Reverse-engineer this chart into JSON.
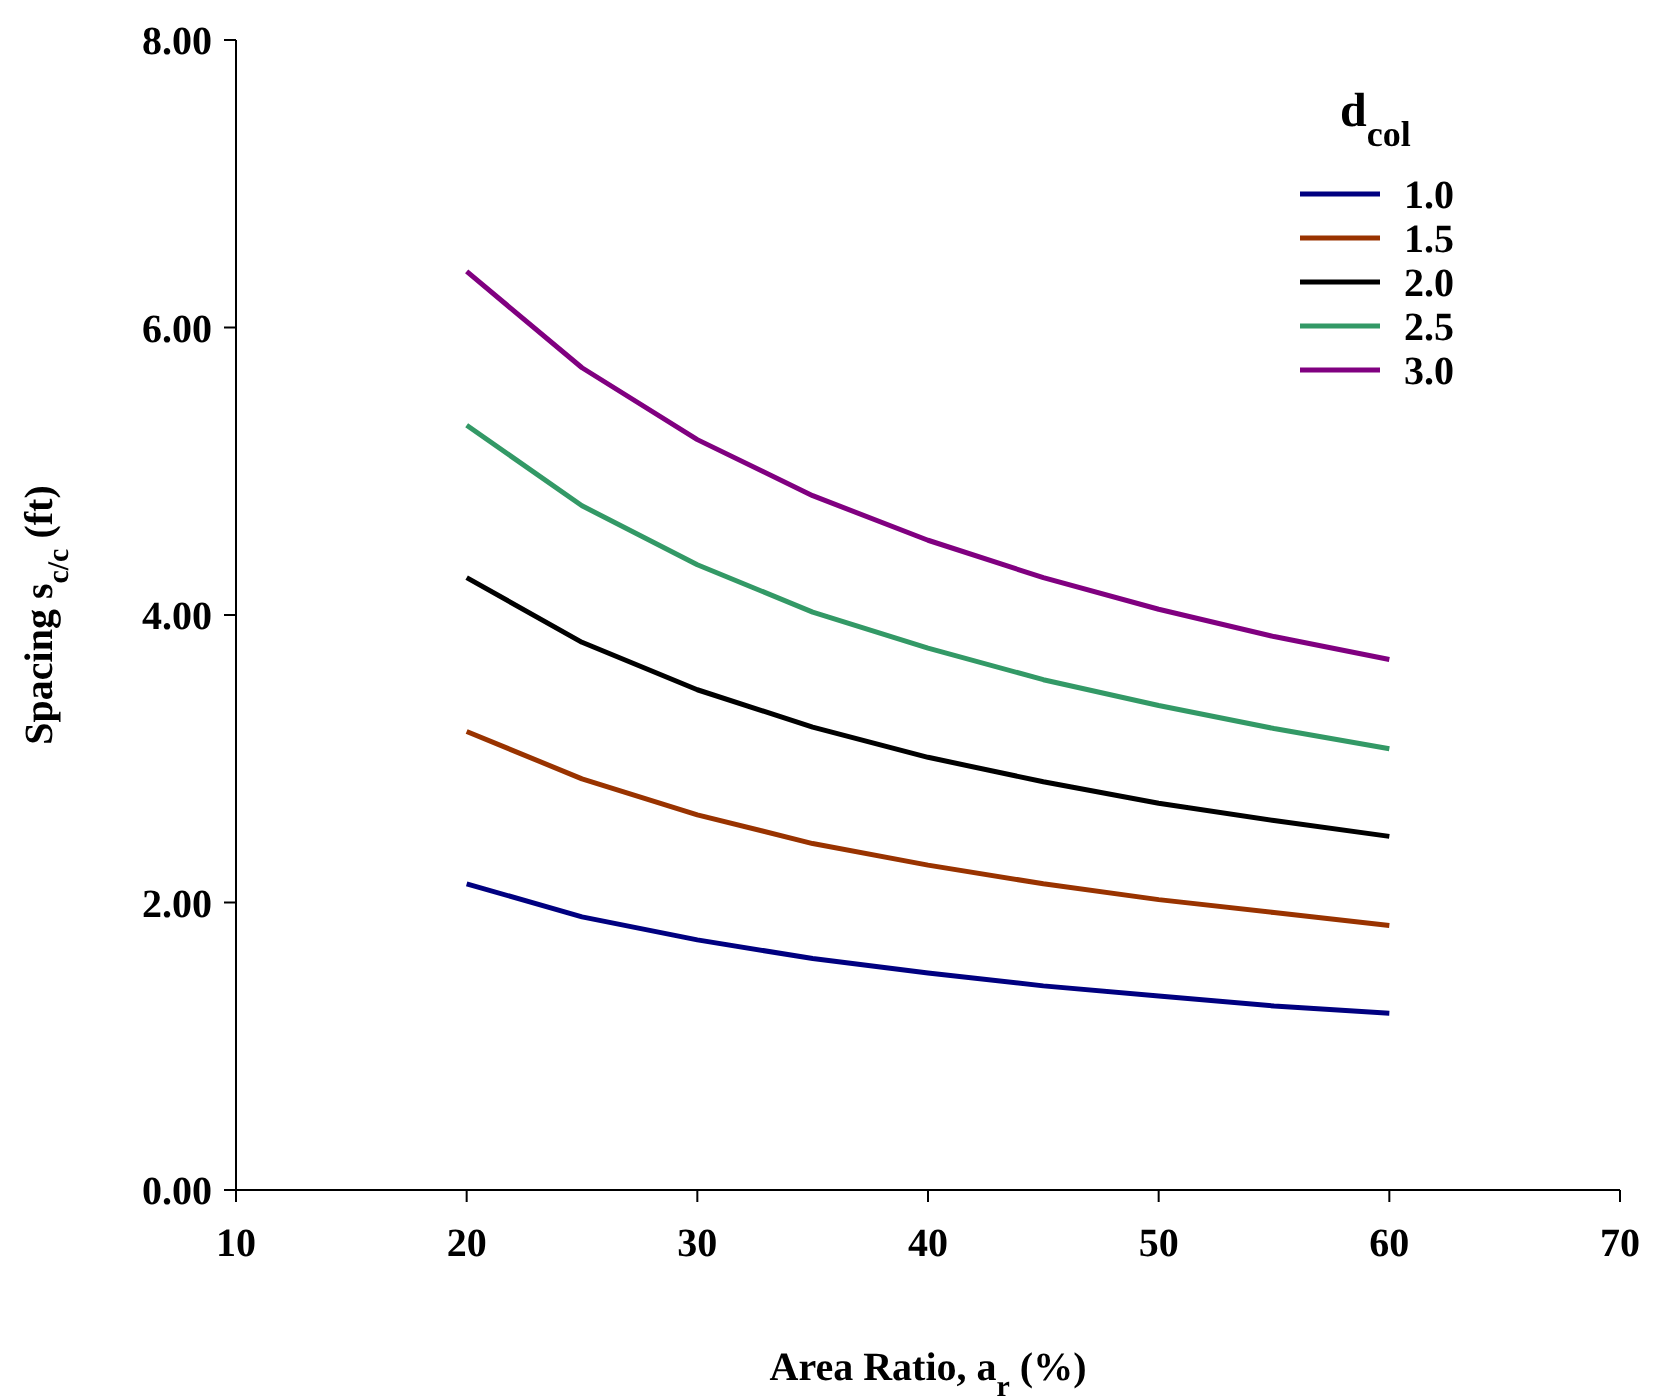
{
  "chart_data": {
    "type": "line",
    "xlabel": "Area Ratio, a$_{r}$ (%)",
    "ylabel": "Spacing s$_{c/c}$ (ft)",
    "legend_title": "d$_{col}$",
    "legend": "top right",
    "grid": false,
    "marker": "none",
    "line_style": "solid",
    "x": [
      20,
      25,
      30,
      35,
      40,
      45,
      50,
      55,
      60
    ],
    "xlim": [
      10,
      70
    ],
    "xticks": [
      10,
      20,
      30,
      40,
      50,
      60,
      70
    ],
    "ylim": [
      0,
      8
    ],
    "yticks": [
      {
        "value": 0,
        "label": "0.00"
      },
      {
        "value": 2,
        "label": "2.00"
      },
      {
        "value": 4,
        "label": "4.00"
      },
      {
        "value": 6,
        "label": "6.00"
      },
      {
        "value": 8,
        "label": "8.00"
      }
    ],
    "series": [
      {
        "name": "1.0",
        "color": "#000080",
        "values": [
          2.13,
          1.9,
          1.74,
          1.61,
          1.51,
          1.42,
          1.35,
          1.28,
          1.23
        ]
      },
      {
        "name": "1.5",
        "color": "#993300",
        "values": [
          3.19,
          2.86,
          2.61,
          2.41,
          2.26,
          2.13,
          2.02,
          1.93,
          1.84
        ]
      },
      {
        "name": "2.0",
        "color": "#000000",
        "values": [
          4.26,
          3.81,
          3.48,
          3.22,
          3.01,
          2.84,
          2.69,
          2.57,
          2.46
        ]
      },
      {
        "name": "2.5",
        "color": "#339966",
        "values": [
          5.32,
          4.76,
          4.35,
          4.02,
          3.77,
          3.55,
          3.37,
          3.21,
          3.07
        ]
      },
      {
        "name": "3.0",
        "color": "#800080",
        "values": [
          6.39,
          5.72,
          5.22,
          4.83,
          4.52,
          4.26,
          4.04,
          3.85,
          3.69
        ]
      }
    ]
  }
}
